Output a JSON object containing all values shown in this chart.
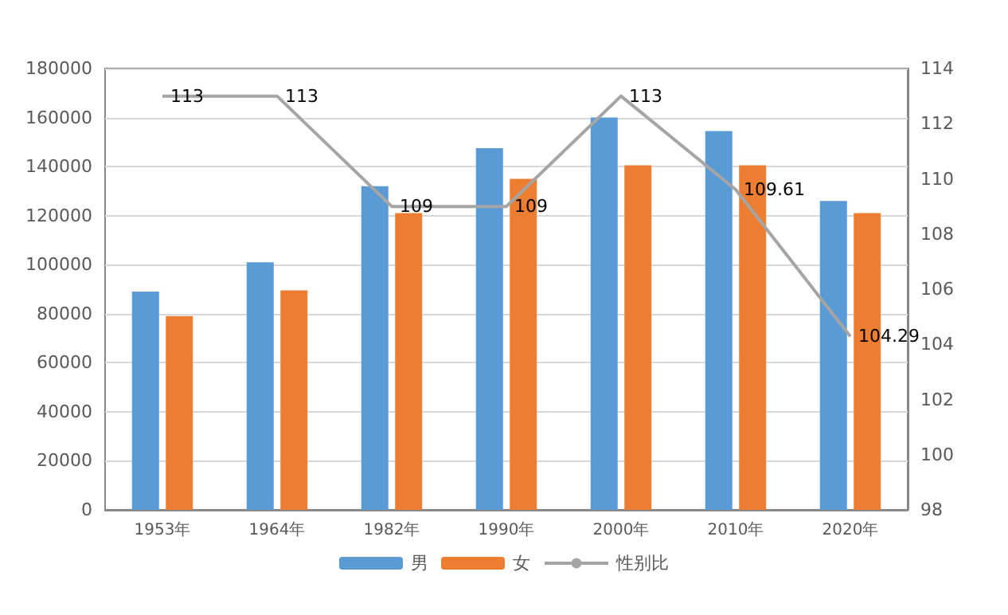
{
  "chart_data": {
    "type": "bar",
    "categories": [
      "1953年",
      "1964年",
      "1982年",
      "1990年",
      "2000年",
      "2010年",
      "2020年"
    ],
    "series": [
      {
        "name": "男",
        "color": "#5b9bd5",
        "values": [
          89000,
          101000,
          132000,
          147500,
          160000,
          154500,
          126000
        ]
      },
      {
        "name": "女",
        "color": "#ed7d31",
        "values": [
          79000,
          89500,
          121000,
          135000,
          140500,
          140500,
          121000
        ]
      },
      {
        "name": "性别比",
        "type": "line",
        "axis": "y2",
        "color": "#a5a5a5",
        "values": [
          113,
          113,
          109,
          109,
          113,
          109.61,
          104.29
        ],
        "value_labels": [
          "113",
          "113",
          "109",
          "109",
          "113",
          "109.61",
          "104.29"
        ]
      }
    ],
    "ylim": [
      0,
      180000
    ],
    "yticks": [
      0,
      20000,
      40000,
      60000,
      80000,
      100000,
      120000,
      140000,
      160000,
      180000
    ],
    "y2lim": [
      98,
      114
    ],
    "y2ticks": [
      98,
      100,
      102,
      104,
      106,
      108,
      110,
      112,
      114
    ],
    "grid": "y",
    "legend": "bottom",
    "marker": "none"
  }
}
